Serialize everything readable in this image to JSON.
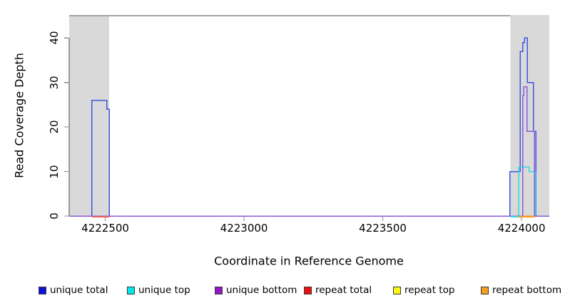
{
  "chart_data": {
    "type": "line",
    "subtype": "step-coverage-plot",
    "title": "",
    "xlabel": "Coordinate in Reference Genome",
    "ylabel": "Read Coverage Depth",
    "xlim": [
      4222370,
      4224100
    ],
    "ylim": [
      0,
      45
    ],
    "x_ticks": [
      4222500,
      4223000,
      4223500,
      4224000
    ],
    "y_ticks": [
      0,
      10,
      20,
      30,
      40
    ],
    "grid": false,
    "legend_position": "bottom",
    "background_color": "#ffffff",
    "shaded_region_color": "#d9d9d9",
    "shaded_regions": [
      {
        "from": 4222370,
        "to": 4222514
      },
      {
        "from": 4223960,
        "to": 4224100
      }
    ],
    "series": [
      {
        "name": "unique total",
        "legend_color": "#1010dd",
        "render_color": "#3b56e0",
        "steps": [
          [
            4222370,
            0
          ],
          [
            4222452,
            26
          ],
          [
            4222506,
            24
          ],
          [
            4222514,
            0
          ],
          [
            4223958,
            10
          ],
          [
            4223995,
            37
          ],
          [
            4224004,
            39
          ],
          [
            4224010,
            40
          ],
          [
            4224021,
            30
          ],
          [
            4224043,
            19
          ],
          [
            4224052,
            0
          ],
          [
            4224100,
            0
          ]
        ]
      },
      {
        "name": "unique top",
        "legend_color": "#00e8e8",
        "render_color": "#30dce0",
        "steps": [
          [
            4222370,
            0
          ],
          [
            4223990,
            11
          ],
          [
            4224027,
            10
          ],
          [
            4224051,
            0
          ],
          [
            4224100,
            0
          ]
        ]
      },
      {
        "name": "unique bottom",
        "legend_color": "#9414c8",
        "render_color": "#8d5ad8",
        "steps": [
          [
            4222370,
            0
          ],
          [
            4224004,
            27
          ],
          [
            4224008,
            29
          ],
          [
            4224020,
            19
          ],
          [
            4224047,
            0
          ],
          [
            4224100,
            0
          ]
        ]
      },
      {
        "name": "repeat total",
        "legend_color": "#e81010",
        "render_color": "#e85c5c",
        "steps": [
          [
            4222370,
            0
          ],
          [
            4224100,
            0
          ]
        ]
      },
      {
        "name": "repeat top",
        "legend_color": "#fbf514",
        "render_color": "#f2e530",
        "steps": [
          [
            4222370,
            0
          ],
          [
            4224100,
            0
          ]
        ]
      },
      {
        "name": "repeat bottom",
        "legend_color": "#f5a01e",
        "render_color": "#ff9718",
        "steps": [
          [
            4222370,
            0
          ],
          [
            4224100,
            0
          ]
        ]
      }
    ],
    "baseline_overlays": [
      {
        "series": "repeat total",
        "from": 4222452,
        "to": 4222515
      },
      {
        "series": "unique top",
        "from": 4223960,
        "to": 4223990
      },
      {
        "series": "repeat bottom",
        "from": 4223990,
        "to": 4224048
      }
    ]
  }
}
